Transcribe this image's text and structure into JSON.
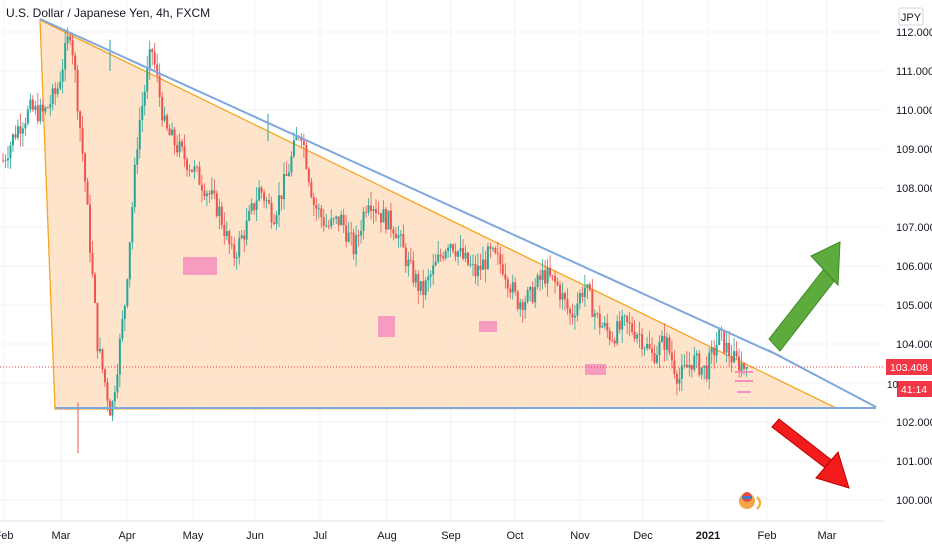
{
  "header": {
    "title": "U.S. Dollar / Japanese Yen, 4h, FXCM",
    "currency_button": "JPY"
  },
  "price_axis": {
    "ticks": [
      "112.000",
      "111.000",
      "110.000",
      "109.000",
      "108.000",
      "107.000",
      "106.000",
      "105.000",
      "104.000",
      "103.000",
      "102.000",
      "101.000",
      "100.000"
    ],
    "last_price": "103.408",
    "countdown": "41:14",
    "last_price_color": "#f23645",
    "partial_tick": "10"
  },
  "time_axis": {
    "labels": [
      "Feb",
      "Mar",
      "Apr",
      "May",
      "Jun",
      "Jul",
      "Aug",
      "Sep",
      "Oct",
      "Nov",
      "Dec",
      "2021",
      "Feb",
      "Mar"
    ],
    "bold_label": "2021"
  },
  "colors": {
    "triangle_fill": "#fcd9b6",
    "triangle_stroke": "#f5a623",
    "trendline": "#7fa7dc",
    "up_candle": "#26a69a",
    "down_candle": "#ef5350",
    "support_box": "#f48fc0",
    "up_arrow": "#4caf50",
    "down_arrow": "#f21c1c"
  },
  "chart_data": {
    "type": "candlestick",
    "title": "U.S. Dollar / Japanese Yen, 4h, FXCM",
    "ylim": [
      99.6,
      112.3
    ],
    "price_approx": {
      "x_months": [
        "Feb",
        "Mar",
        "Apr",
        "May",
        "Jun",
        "Jul",
        "Aug",
        "Sep",
        "Oct",
        "Nov",
        "Dec",
        "2021",
        "Feb",
        "Mar"
      ],
      "close_path": [
        108.7,
        109.5,
        110.0,
        109.9,
        110.5,
        112.1,
        108.5,
        104.0,
        102.2,
        105.0,
        109.5,
        111.6,
        109.5,
        109.0,
        108.5,
        108.0,
        107.4,
        106.2,
        107.0,
        108.0,
        107.3,
        108.3,
        109.6,
        107.6,
        107.0,
        107.2,
        106.4,
        107.8,
        107.3,
        107.0,
        106.0,
        105.3,
        106.0,
        106.7,
        106.2,
        105.8,
        106.3,
        106.0,
        105.1,
        105.2,
        105.8,
        105.5,
        104.7,
        105.5,
        104.6,
        104.2,
        104.5,
        104.3,
        103.7,
        104.1,
        103.1,
        103.6,
        103.3,
        104.2,
        103.6,
        103.4
      ],
      "last": 103.408
    },
    "pattern": "descending triangle",
    "support_level": 102.35,
    "resistance_line": {
      "from": {
        "date": "Feb 2020",
        "price": 112.2
      },
      "to": {
        "date": "Feb 2021",
        "price": 102.35
      }
    },
    "projection_arrows": [
      "up",
      "down"
    ]
  }
}
